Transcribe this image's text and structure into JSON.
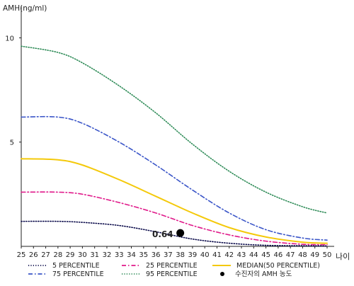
{
  "chart_data": {
    "type": "line",
    "title": "",
    "ylabel": "AMH(ng/ml)",
    "xlabel": "나이",
    "xlim": [
      25,
      50
    ],
    "ylim": [
      0,
      11
    ],
    "x_ticks": [
      25,
      26,
      27,
      28,
      29,
      30,
      31,
      32,
      33,
      34,
      35,
      36,
      37,
      38,
      39,
      40,
      41,
      42,
      43,
      44,
      45,
      46,
      47,
      48,
      49,
      50
    ],
    "y_ticks": [
      5,
      10
    ],
    "grid": false,
    "legend_position": "bottom",
    "x": [
      25,
      28,
      30,
      33,
      36,
      39,
      42,
      45,
      48,
      50
    ],
    "series": [
      {
        "name": "5 PERCENTILE",
        "color": "#0a0a4a",
        "dash": "dotted",
        "values": [
          1.2,
          1.2,
          1.15,
          1.0,
          0.7,
          0.35,
          0.15,
          0.05,
          0.03,
          0.02
        ]
      },
      {
        "name": "25 PERCENTILE",
        "color": "#e0198a",
        "dash": "dashdot",
        "values": [
          2.6,
          2.6,
          2.5,
          2.1,
          1.6,
          1.0,
          0.55,
          0.25,
          0.1,
          0.08
        ]
      },
      {
        "name": "MEDIAN(50 PERCENTILE)",
        "color": "#f4c90a",
        "dash": "solid",
        "values": [
          4.2,
          4.15,
          3.9,
          3.2,
          2.4,
          1.6,
          0.9,
          0.45,
          0.2,
          0.15
        ]
      },
      {
        "name": "75 PERCENTILE",
        "color": "#3a55c8",
        "dash": "dashdot",
        "values": [
          6.2,
          6.2,
          5.9,
          5.0,
          3.9,
          2.7,
          1.6,
          0.8,
          0.4,
          0.3
        ]
      },
      {
        "name": "95 PERCENTILE",
        "color": "#2e8b57",
        "dash": "dotted",
        "values": [
          9.6,
          9.3,
          8.8,
          7.7,
          6.4,
          4.9,
          3.6,
          2.6,
          1.9,
          1.6
        ]
      }
    ],
    "marker": {
      "name": "수진자의 AMH 농도",
      "x": 38,
      "y": 0.64,
      "label": "0.64",
      "color": "#000000"
    }
  }
}
